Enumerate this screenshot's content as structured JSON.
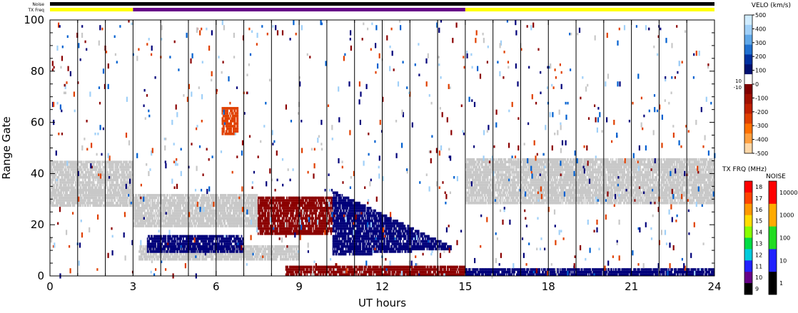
{
  "chart_data": {
    "type": "heatmap",
    "title": "",
    "xlabel": "UT hours",
    "ylabel": "Range Gate",
    "xlim": [
      0,
      24
    ],
    "ylim": [
      0,
      100
    ],
    "x_ticks": [
      0,
      3,
      6,
      9,
      12,
      15,
      18,
      21,
      24
    ],
    "y_ticks": [
      0,
      20,
      40,
      60,
      80,
      100
    ],
    "status_bars": [
      {
        "name": "Noise",
        "segments": [
          {
            "start": 0,
            "end": 24,
            "color": "#000000"
          }
        ]
      },
      {
        "name": "TX Freq",
        "segments": [
          {
            "start": 0,
            "end": 3,
            "color": "#ffff00"
          },
          {
            "start": 3,
            "end": 15,
            "color": "#660088"
          },
          {
            "start": 15,
            "end": 24,
            "color": "#ffff00"
          }
        ]
      }
    ],
    "scan_boundaries_ut": [
      1,
      2,
      3,
      4,
      5,
      6,
      7,
      8,
      9,
      10,
      11,
      12,
      13,
      14,
      15,
      16,
      17,
      18,
      19,
      20,
      21,
      22,
      23
    ],
    "velocity_colorbar": {
      "title": "VELO (km/s)",
      "ticks": [
        "500",
        "400",
        "300",
        "200",
        "100",
        "0",
        "-100",
        "-200",
        "-300",
        "-400",
        "-500"
      ],
      "midlabels": [
        "10",
        "-10"
      ],
      "colors": [
        "#d0ecff",
        "#a0d0f8",
        "#60a8e8",
        "#2070d0",
        "#0030a0",
        "#001070",
        "#ffffff",
        "#800000",
        "#a01000",
        "#c02000",
        "#e04000",
        "#ff7000",
        "#ffa040",
        "#ffd8a8"
      ]
    },
    "txfreq_colorbar": {
      "title": "TX FRQ (MHz)",
      "ticks": [
        "18",
        "17",
        "16",
        "15",
        "14",
        "13",
        "12",
        "11",
        "10",
        "9"
      ],
      "colors": [
        "#ff0000",
        "#ff4400",
        "#ff9900",
        "#ffdd00",
        "#88ff00",
        "#00dd44",
        "#00ccdd",
        "#2222ff",
        "#660088",
        "#000000"
      ]
    },
    "noise_colorbar": {
      "title": "NOISE",
      "ticks": [
        "10000",
        "1000",
        "100",
        "10",
        "1"
      ],
      "colors": [
        "#ff0000",
        "#ffaa00",
        "#22dd22",
        "#2222ff",
        "#000000"
      ]
    },
    "ground_scatter_color": "#c8c8c8",
    "scatter_regions": [
      {
        "label": "ground_scatter_band_pre",
        "x": [
          0,
          3
        ],
        "y": [
          27,
          45
        ],
        "color": "#c8c8c8"
      },
      {
        "label": "ground_scatter_band_post",
        "x": [
          15,
          24
        ],
        "y": [
          28,
          46
        ],
        "color": "#c8c8c8"
      },
      {
        "label": "gray_mid_upper",
        "x": [
          3,
          7.5
        ],
        "y": [
          19,
          32
        ],
        "color": "#c8c8c8"
      },
      {
        "label": "gray_mid_lower",
        "x": [
          3.2,
          9
        ],
        "y": [
          6,
          12
        ],
        "color": "#c8c8c8"
      },
      {
        "label": "red_blob_morning",
        "x": [
          7.5,
          10.2
        ],
        "y": [
          16,
          31
        ],
        "color": "#8b0000"
      },
      {
        "label": "blue_wedge_main",
        "x": [
          10.2,
          14.5
        ],
        "y": [
          8,
          33
        ],
        "color": "#00007a"
      },
      {
        "label": "blue_lower_band",
        "x": [
          3.5,
          7
        ],
        "y": [
          9,
          16
        ],
        "color": "#00007a"
      },
      {
        "label": "red_bottom_band",
        "x": [
          8.5,
          15
        ],
        "y": [
          0,
          4
        ],
        "color": "#8b0000"
      },
      {
        "label": "blue_bottom_band",
        "x": [
          15,
          24
        ],
        "y": [
          0,
          3
        ],
        "color": "#00007a"
      },
      {
        "label": "orange_patch",
        "x": [
          6.2,
          6.8
        ],
        "y": [
          55,
          66
        ],
        "color": "#e04000"
      }
    ]
  }
}
